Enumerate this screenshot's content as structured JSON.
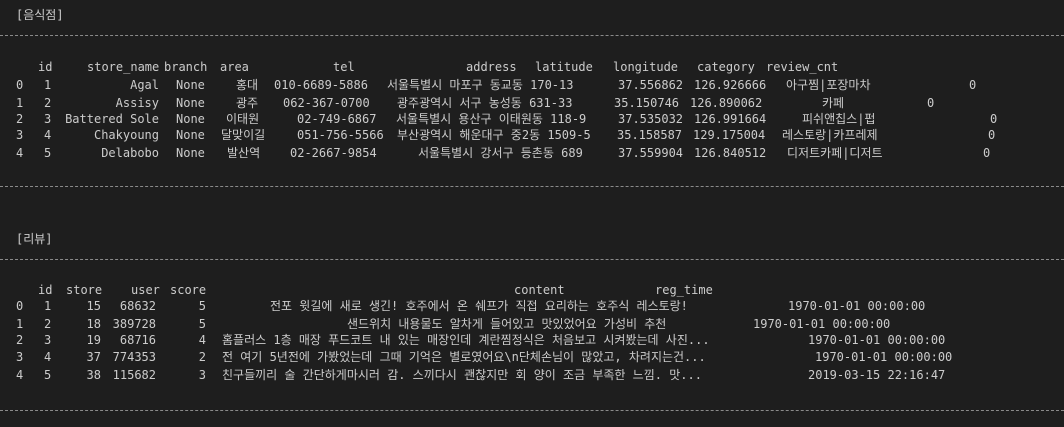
{
  "sections": {
    "stores": {
      "title": "[음식점]",
      "columns": [
        "id",
        "store_name",
        "branch",
        "area",
        "tel",
        "address",
        "latitude",
        "longitude",
        "category",
        "review_cnt"
      ],
      "rows": [
        {
          "index": "0",
          "id": "1",
          "store_name": "Agal",
          "branch": "None",
          "area": "홍대",
          "tel": "010-6689-5886",
          "address": "서울특별시 마포구 동교동 170-13",
          "latitude": "37.556862",
          "longitude": "126.926666",
          "category": "아구찜|포장마차",
          "review_cnt": "0"
        },
        {
          "index": "1",
          "id": "2",
          "store_name": "Assisy",
          "branch": "None",
          "area": "광주",
          "tel": "062-367-0700",
          "address": "광주광역시 서구 농성동 631-33",
          "latitude": "35.150746",
          "longitude": "126.890062",
          "category": "카페",
          "review_cnt": "0"
        },
        {
          "index": "2",
          "id": "3",
          "store_name": "Battered Sole",
          "branch": "None",
          "area": "이태원",
          "tel": "02-749-6867",
          "address": "서울특별시 용산구 이태원동 118-9",
          "latitude": "37.535032",
          "longitude": "126.991664",
          "category": "피쉬앤칩스|펍",
          "review_cnt": "0"
        },
        {
          "index": "3",
          "id": "4",
          "store_name": "Chakyoung",
          "branch": "None",
          "area": "달맞이길",
          "tel": "051-756-5566",
          "address": "부산광역시 해운대구 중2동 1509-5",
          "latitude": "35.158587",
          "longitude": "129.175004",
          "category": "레스토랑|카프레제",
          "review_cnt": "0"
        },
        {
          "index": "4",
          "id": "5",
          "store_name": "Delabobo",
          "branch": "None",
          "area": "발산역",
          "tel": "02-2667-9854",
          "address": "서울특별시 강서구 등촌동 689",
          "latitude": "37.559904",
          "longitude": "126.840512",
          "category": "디저트카페|디저트",
          "review_cnt": "0"
        }
      ]
    },
    "reviews": {
      "title": "[리뷰]",
      "columns": [
        "id",
        "store",
        "user",
        "score",
        "content",
        "reg_time"
      ],
      "rows": [
        {
          "index": "0",
          "id": "1",
          "store": "15",
          "user": "68632",
          "score": "5",
          "content": "전포 윗길에 새로 생긴! 호주에서 온 쉐프가 직접 요리하는 호주식 레스토랑!",
          "reg_time": "1970-01-01 00:00:00"
        },
        {
          "index": "1",
          "id": "2",
          "store": "18",
          "user": "389728",
          "score": "5",
          "content": "샌드위치 내용물도 알차게 들어있고 맛있었어요 가성비 추천",
          "reg_time": "1970-01-01 00:00:00"
        },
        {
          "index": "2",
          "id": "3",
          "store": "19",
          "user": "68716",
          "score": "4",
          "content": "홈플러스 1층 매장 푸드코트 내 있는 매장인데 계란찜정식은 처음보고 시켜봤는데 사진...",
          "reg_time": "1970-01-01 00:00:00"
        },
        {
          "index": "3",
          "id": "4",
          "store": "37",
          "user": "774353",
          "score": "2",
          "content": "전 여기 5년전에 가봤었는데 그때 기억은 별로였어요\\n단체손님이 많았고, 차려지는건...",
          "reg_time": "1970-01-01 00:00:00"
        },
        {
          "index": "4",
          "id": "5",
          "store": "38",
          "user": "115682",
          "score": "3",
          "content": "친구들끼리 술 간단하게마시러 감. 스끼다시 괜찮지만 회 양이 조금 부족한 느낌. 맛...",
          "reg_time": "2019-03-15 22:16:47"
        }
      ]
    }
  }
}
